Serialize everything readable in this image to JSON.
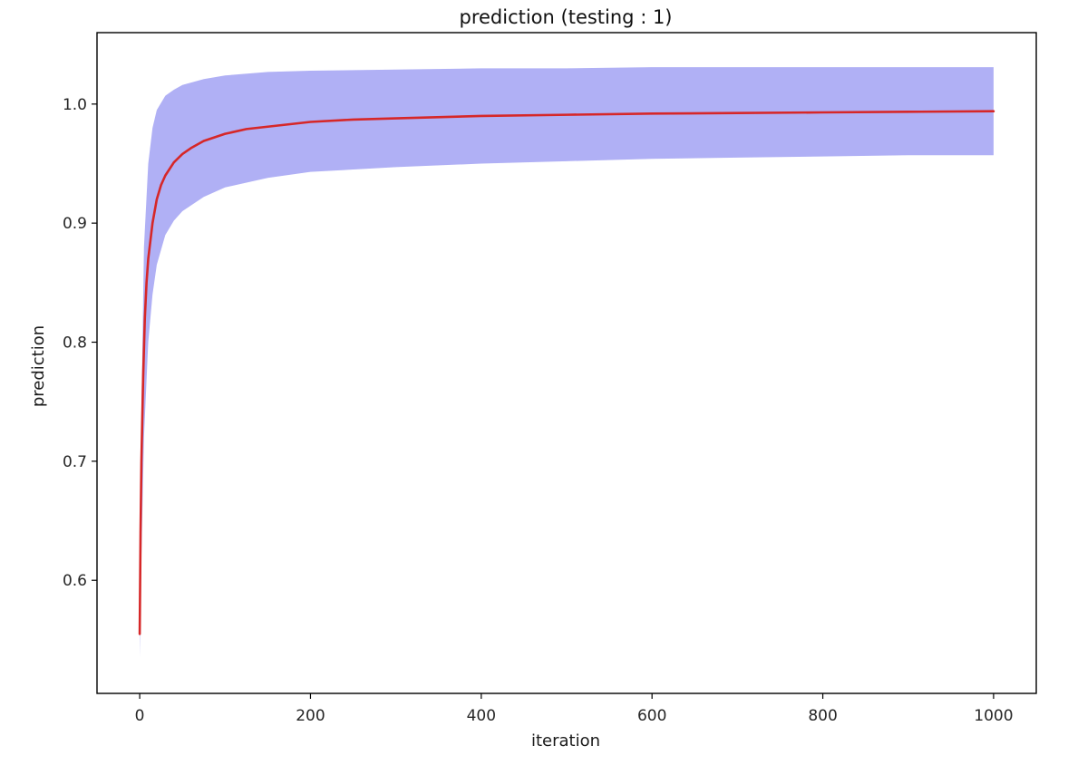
{
  "chart_data": {
    "type": "area",
    "title": "prediction (testing : 1)",
    "xlabel": "iteration",
    "ylabel": "prediction",
    "xlim": [
      -50,
      1050
    ],
    "ylim": [
      0.505,
      1.06
    ],
    "x_ticks": [
      0,
      200,
      400,
      600,
      800,
      1000
    ],
    "y_ticks": [
      0.6,
      0.7,
      0.8,
      0.9,
      1.0
    ],
    "x_tick_labels": [
      "0",
      "200",
      "400",
      "600",
      "800",
      "1000"
    ],
    "y_tick_labels": [
      "0.6",
      "0.7",
      "0.8",
      "0.9",
      "1.0"
    ],
    "grid": false,
    "legend": null,
    "series": [
      {
        "kind": "band",
        "color": "#b0b0f5",
        "x": [
          0,
          2,
          5,
          10,
          15,
          20,
          30,
          40,
          50,
          75,
          100,
          150,
          200,
          300,
          400,
          500,
          600,
          700,
          800,
          900,
          1000
        ],
        "lower": [
          0.535,
          0.62,
          0.72,
          0.8,
          0.84,
          0.865,
          0.89,
          0.902,
          0.91,
          0.922,
          0.93,
          0.938,
          0.943,
          0.947,
          0.95,
          0.952,
          0.954,
          0.955,
          0.956,
          0.957,
          0.957
        ],
        "upper": [
          0.57,
          0.74,
          0.88,
          0.95,
          0.98,
          0.995,
          1.007,
          1.012,
          1.016,
          1.021,
          1.024,
          1.027,
          1.028,
          1.029,
          1.03,
          1.03,
          1.031,
          1.031,
          1.031,
          1.031,
          1.031
        ]
      },
      {
        "kind": "line",
        "color": "#d62728",
        "x": [
          0,
          1,
          2,
          4,
          6,
          8,
          10,
          15,
          20,
          25,
          30,
          40,
          50,
          60,
          75,
          100,
          125,
          150,
          200,
          250,
          300,
          400,
          500,
          600,
          700,
          800,
          900,
          1000
        ],
        "y": [
          0.555,
          0.64,
          0.7,
          0.77,
          0.82,
          0.85,
          0.87,
          0.9,
          0.92,
          0.932,
          0.94,
          0.951,
          0.958,
          0.963,
          0.969,
          0.975,
          0.979,
          0.981,
          0.985,
          0.987,
          0.988,
          0.99,
          0.991,
          0.992,
          0.9925,
          0.993,
          0.9935,
          0.994
        ]
      }
    ]
  }
}
